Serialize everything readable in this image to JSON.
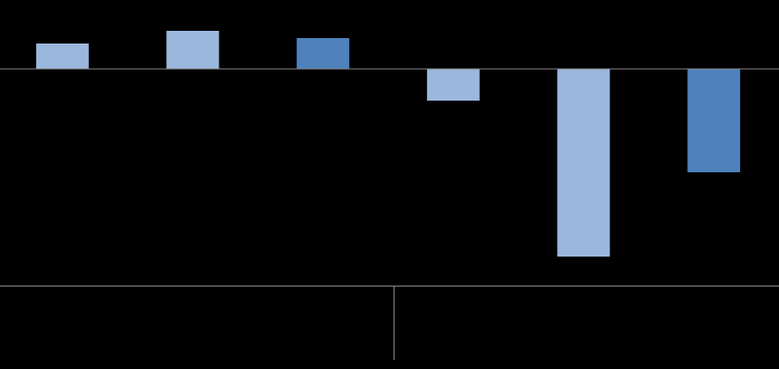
{
  "chart_data": {
    "type": "bar",
    "categories": [
      null,
      null,
      null,
      null,
      null,
      null
    ],
    "values": [
      28,
      42,
      34,
      -35,
      -207,
      -114
    ],
    "colors": [
      "#9bb7dd",
      "#9bb7dd",
      "#4f81bd",
      "#9bb7dd",
      "#9bb7dd",
      "#4f81bd"
    ],
    "ylim": [
      -239,
      76
    ]
  }
}
